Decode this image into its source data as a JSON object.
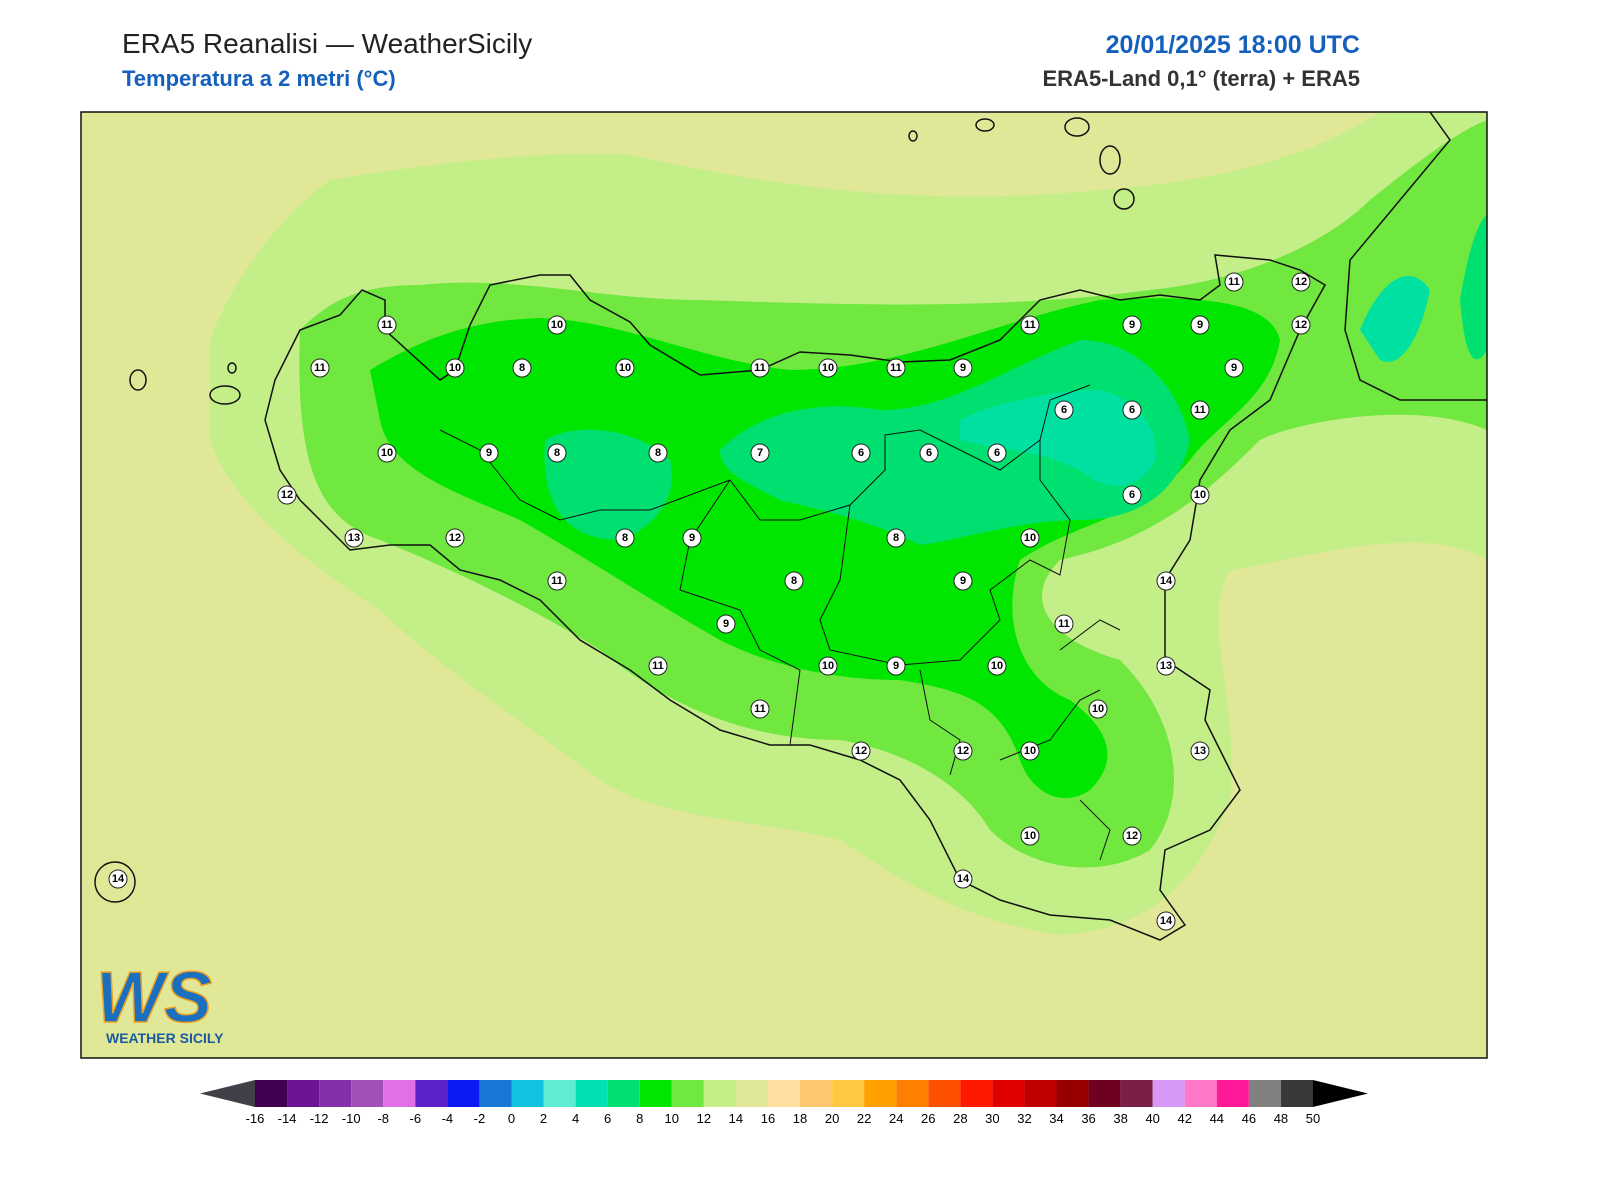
{
  "header": {
    "title": "ERA5 Reanalisi — WeatherSicily",
    "subtitle": "Temperatura a 2 metri (°C)",
    "datetime": "20/01/2025 18:00 UTC",
    "source": "ERA5-Land 0,1° (terra) + ERA5"
  },
  "map": {
    "stations": [
      11,
      10,
      11,
      9,
      9,
      12,
      11,
      12,
      11,
      10,
      8,
      10,
      11,
      10,
      11,
      9,
      9,
      6,
      6,
      11,
      10,
      9,
      8,
      8,
      7,
      6,
      6,
      6,
      12,
      6,
      10,
      13,
      12,
      8,
      9,
      8,
      10,
      11,
      8,
      9,
      14,
      9,
      11,
      11,
      10,
      9,
      10,
      13,
      11,
      10,
      12,
      12,
      10,
      13,
      10,
      12,
      14,
      14,
      14
    ]
  },
  "colorbar": {
    "ticks": [
      -16,
      -14,
      -12,
      -10,
      -8,
      -6,
      -4,
      -2,
      0,
      2,
      4,
      6,
      8,
      10,
      12,
      14,
      16,
      18,
      20,
      22,
      24,
      26,
      28,
      30,
      32,
      34,
      36,
      38,
      40,
      42,
      44,
      46,
      48,
      50
    ],
    "colors": [
      "#40004f",
      "#6a1494",
      "#8430a8",
      "#a050b8",
      "#e070e8",
      "#5a22c8",
      "#0a1af0",
      "#1878d8",
      "#10c4e0",
      "#60ecd0",
      "#00e0b0",
      "#00e070",
      "#00e600",
      "#70e840",
      "#c4ee88",
      "#e0e898",
      "#ffe0a0",
      "#ffc870",
      "#ffc840",
      "#ffa000",
      "#ff8000",
      "#ff5000",
      "#ff1800",
      "#e00000",
      "#c00000",
      "#980000",
      "#700020",
      "#7a2048",
      "#d898f8",
      "#ff78c8",
      "#ff1898",
      "#808080",
      "#383838"
    ],
    "under_color": "#404048",
    "over_color": "#000000"
  },
  "logo": {
    "mark": "WS",
    "text": "WEATHER SICILY"
  }
}
